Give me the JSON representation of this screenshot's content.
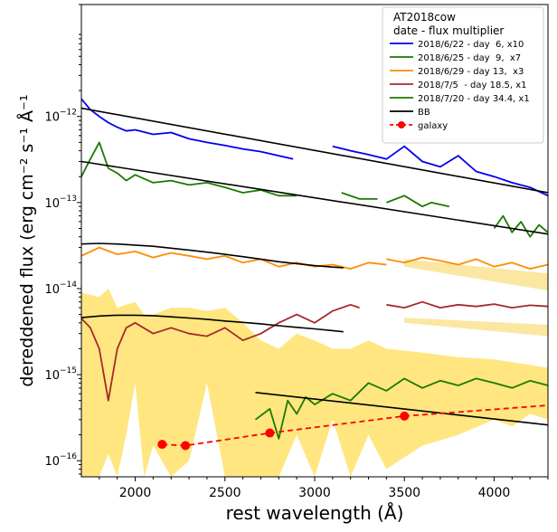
{
  "chart_data": {
    "type": "line",
    "title": "",
    "xlabel": "rest wavelength (Å)",
    "ylabel": "dereddened flux (erg cm⁻² s⁻¹ Å⁻¹",
    "xscale": "linear",
    "yscale": "log",
    "xlim": [
      1700,
      4300
    ],
    "ylim": [
      6.5e-17,
      2e-11
    ],
    "grid": false,
    "legend": {
      "placement": "top-right",
      "title": "AT2018cow\ndate - flux multiplier"
    },
    "x_ticks": [
      {
        "value": 2000,
        "label": "2000"
      },
      {
        "value": 2500,
        "label": "2500"
      },
      {
        "value": 3000,
        "label": "3000"
      },
      {
        "value": 3500,
        "label": "3500"
      },
      {
        "value": 4000,
        "label": "4000"
      }
    ],
    "y_ticks": [
      {
        "value": 1e-16,
        "base": "10",
        "exp": "−16"
      },
      {
        "value": 1e-15,
        "base": "10",
        "exp": "−15"
      },
      {
        "value": 1e-14,
        "base": "10",
        "exp": "−14"
      },
      {
        "value": 1e-13,
        "base": "10",
        "exp": "−13"
      },
      {
        "value": 1e-12,
        "base": "10",
        "exp": "−12"
      }
    ],
    "series": [
      {
        "name": "2018/6/22 - day  6, x10",
        "color": "#0000ee",
        "segments": [
          {
            "x": [
              1700,
              1750,
              1800,
              1850,
              1900,
              1950,
              2000,
              2100,
              2200,
              2300,
              2400,
              2500,
              2600,
              2700,
              2800,
              2880
            ],
            "y": [
              1.6e-12,
              1.2e-12,
              1e-12,
              8.5e-13,
              7.5e-13,
              6.8e-13,
              7e-13,
              6.2e-13,
              6.5e-13,
              5.5e-13,
              5e-13,
              4.6e-13,
              4.2e-13,
              3.9e-13,
              3.5e-13,
              3.2e-13
            ]
          },
          {
            "x": [
              3100,
              3200,
              3300,
              3400,
              3500,
              3600,
              3700,
              3800,
              3900,
              4000,
              4100,
              4200,
              4300
            ],
            "y": [
              4.5e-13,
              4e-13,
              3.6e-13,
              3.2e-13,
              4.5e-13,
              3e-13,
              2.6e-13,
              3.5e-13,
              2.3e-13,
              2e-13,
              1.7e-13,
              1.5e-13,
              1.2e-13
            ]
          }
        ]
      },
      {
        "name": "2018/6/25 - day  9,  x7",
        "color": "#1a7a00",
        "segments": [
          {
            "x": [
              1700,
              1750,
              1800,
              1850,
              1900,
              1950,
              2000,
              2100,
              2200,
              2300,
              2400,
              2500,
              2600,
              2700,
              2800,
              2900
            ],
            "y": [
              2e-13,
              3.2e-13,
              5e-13,
              2.5e-13,
              2.2e-13,
              1.8e-13,
              2.1e-13,
              1.7e-13,
              1.8e-13,
              1.6e-13,
              1.7e-13,
              1.5e-13,
              1.3e-13,
              1.4e-13,
              1.2e-13,
              1.2e-13
            ]
          },
          {
            "x": [
              3150,
              3250,
              3350
            ],
            "y": [
              1.3e-13,
              1.1e-13,
              1.1e-13
            ]
          },
          {
            "x": [
              3400,
              3500,
              3600,
              3650,
              3750
            ],
            "y": [
              1e-13,
              1.2e-13,
              9e-14,
              1e-13,
              9e-14
            ]
          },
          {
            "x": [
              4000,
              4050,
              4100,
              4150,
              4200,
              4250,
              4300
            ],
            "y": [
              5e-14,
              7e-14,
              4.5e-14,
              6e-14,
              4e-14,
              5.5e-14,
              4.5e-14
            ]
          }
        ]
      },
      {
        "name": "2018/6/29 - day 13,  x3",
        "color": "#ff8c00",
        "segments": [
          {
            "x": [
              1700,
              1800,
              1900,
              2000,
              2100,
              2200,
              2300,
              2400,
              2500,
              2600,
              2700,
              2800,
              2900,
              3000,
              3100,
              3200,
              3300,
              3400
            ],
            "y": [
              2.4e-14,
              3e-14,
              2.5e-14,
              2.7e-14,
              2.3e-14,
              2.6e-14,
              2.4e-14,
              2.2e-14,
              2.4e-14,
              2e-14,
              2.2e-14,
              1.8e-14,
              2e-14,
              1.8e-14,
              1.9e-14,
              1.7e-14,
              2e-14,
              1.9e-14
            ]
          },
          {
            "x": [
              3400,
              3500,
              3600,
              3700,
              3800,
              3900,
              4000,
              4100,
              4200,
              4300
            ],
            "y": [
              2.2e-14,
              2e-14,
              2.3e-14,
              2.1e-14,
              1.9e-14,
              2.2e-14,
              1.8e-14,
              2e-14,
              1.7e-14,
              1.9e-14
            ]
          }
        ]
      },
      {
        "name": "2018/7/5  - day 18.5, x1",
        "color": "#a52a2a",
        "segments": [
          {
            "x": [
              1700,
              1750,
              1800,
              1850,
              1900,
              1950,
              2000,
              2100,
              2200,
              2300,
              2400,
              2500,
              2600,
              2700,
              2800,
              2900,
              3000,
              3100,
              3200,
              3250
            ],
            "y": [
              4.5e-15,
              3.5e-15,
              2e-15,
              5e-16,
              2e-15,
              3.5e-15,
              4e-15,
              3e-15,
              3.5e-15,
              3e-15,
              2.8e-15,
              3.5e-15,
              2.5e-15,
              3e-15,
              4e-15,
              5e-15,
              4e-15,
              5.5e-15,
              6.5e-15,
              6e-15
            ]
          },
          {
            "x": [
              3400,
              3500,
              3600,
              3700,
              3800,
              3900,
              4000,
              4100,
              4200,
              4300
            ],
            "y": [
              6.5e-15,
              6e-15,
              7e-15,
              6e-15,
              6.5e-15,
              6.2e-15,
              6.6e-15,
              6e-15,
              6.4e-15,
              6.2e-15
            ]
          }
        ]
      },
      {
        "name": "2018/7/20 - day 34.4, x1",
        "color": "#1a7a00",
        "segments": [
          {
            "x": [
              2670,
              2750,
              2800,
              2850,
              2900,
              2950,
              3000,
              3100,
              3200,
              3300,
              3400,
              3500,
              3600,
              3700,
              3800,
              3900,
              4000,
              4100,
              4200,
              4300
            ],
            "y": [
              3e-16,
              4e-16,
              1.8e-16,
              5e-16,
              3.5e-16,
              5.5e-16,
              4.5e-16,
              6e-16,
              5e-16,
              8e-16,
              6.5e-16,
              9e-16,
              7e-16,
              8.5e-16,
              7.5e-16,
              9e-16,
              8e-16,
              7e-16,
              8.5e-16,
              7.5e-16
            ]
          }
        ]
      },
      {
        "name": "BB",
        "color": "#000000",
        "segments": [
          {
            "x": [
              1700,
              4300
            ],
            "y": [
              1.25e-12,
              1.3e-13
            ]
          },
          {
            "x": [
              1700,
              4300
            ],
            "y": [
              3e-13,
              4.3e-14
            ]
          },
          {
            "x": [
              1700,
              1800,
              1900,
              2000,
              2100,
              2200,
              2300,
              2400,
              2500,
              2600,
              2700,
              2800,
              2900,
              3000,
              3100,
              3160
            ],
            "y": [
              3.3e-14,
              3.35e-14,
              3.3e-14,
              3.2e-14,
              3.1e-14,
              2.95e-14,
              2.8e-14,
              2.65e-14,
              2.5e-14,
              2.35e-14,
              2.2e-14,
              2.05e-14,
              1.95e-14,
              1.85e-14,
              1.78e-14,
              1.75e-14
            ]
          },
          {
            "x": [
              1700,
              1800,
              1900,
              2000,
              2100,
              2200,
              2300,
              2400,
              2500,
              2600,
              2700,
              2800,
              2900,
              3000,
              3100,
              3160
            ],
            "y": [
              4.6e-15,
              4.8e-15,
              4.9e-15,
              4.9e-15,
              4.85e-15,
              4.7e-15,
              4.55e-15,
              4.4e-15,
              4.2e-15,
              4.05e-15,
              3.9e-15,
              3.7e-15,
              3.55e-15,
              3.4e-15,
              3.25e-15,
              3.15e-15
            ]
          },
          {
            "x": [
              2670,
              4300
            ],
            "y": [
              6.2e-16,
              2.6e-16
            ]
          }
        ]
      },
      {
        "name": "galaxy",
        "color": "#ff0000",
        "markers": true,
        "dashed": true,
        "segments": [
          {
            "x": [
              2150,
              2280,
              2750,
              3500,
              4300
            ],
            "y": [
              1.55e-16,
              1.5e-16,
              2.1e-16,
              3.3e-16,
              4.4e-16
            ]
          }
        ],
        "points": {
          "x": [
            2150,
            2280,
            2750,
            3500
          ],
          "y": [
            1.55e-16,
            1.5e-16,
            2.1e-16,
            3.3e-16
          ]
        }
      }
    ],
    "error_bands": [
      {
        "color": "#ffe680",
        "x": [
          1700,
          1800,
          1850,
          1900,
          1950,
          2000,
          2050,
          2100,
          2200,
          2300,
          2400,
          2500,
          2600,
          2700,
          2800,
          2900,
          3000,
          3100,
          3200,
          3300,
          3400,
          3600,
          3800,
          4000,
          4100,
          4200,
          4300
        ],
        "lo": [
          6.5e-17,
          6.5e-17,
          1.2e-16,
          6.5e-17,
          2e-16,
          8e-16,
          6.5e-17,
          1.5e-16,
          6.5e-17,
          1e-16,
          8e-16,
          6.5e-17,
          6.5e-17,
          6.5e-17,
          6.5e-17,
          2e-16,
          6.5e-17,
          3e-16,
          6.5e-17,
          2e-16,
          8e-17,
          1.5e-16,
          2e-16,
          3e-16,
          2.5e-16,
          3.5e-16,
          3e-16
        ],
        "hi": [
          9e-15,
          8e-15,
          1e-14,
          6e-15,
          6.5e-15,
          7e-15,
          5e-15,
          5e-15,
          6e-15,
          6e-15,
          5.5e-15,
          6e-15,
          4e-15,
          2.5e-15,
          2e-15,
          3e-15,
          2.5e-15,
          2e-15,
          2e-15,
          2.5e-15,
          2e-15,
          1.8e-15,
          1.6e-15,
          1.5e-15,
          1.4e-15,
          1.3e-15,
          1.2e-15
        ]
      },
      {
        "color": "#fbe7a1",
        "x": [
          3500,
          4300
        ],
        "lo": [
          1.8e-14,
          9.5e-15
        ],
        "hi": [
          2.2e-14,
          1.5e-14
        ]
      },
      {
        "color": "#fbe7a1",
        "x": [
          3500,
          4300
        ],
        "lo": [
          4e-15,
          2.8e-15
        ],
        "hi": [
          4.6e-15,
          3.8e-15
        ]
      }
    ]
  }
}
